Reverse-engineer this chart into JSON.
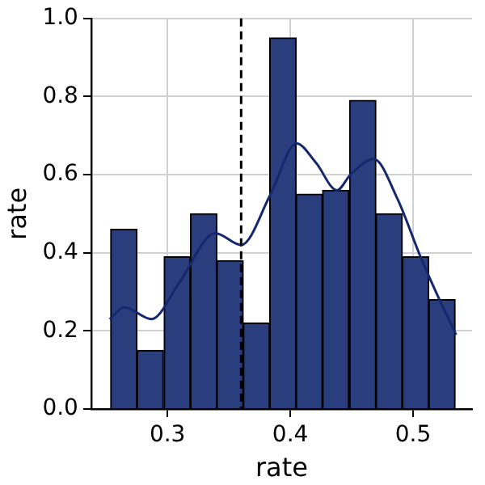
{
  "chart_data": {
    "type": "histogram",
    "xlabel": "rate",
    "ylabel": "rate",
    "bins": [
      0.254,
      0.275,
      0.297,
      0.319,
      0.34,
      0.362,
      0.383,
      0.405,
      0.426,
      0.448,
      0.47,
      0.491,
      0.513,
      0.534
    ],
    "values": [
      0.46,
      0.15,
      0.39,
      0.5,
      0.38,
      0.22,
      0.95,
      0.55,
      0.56,
      0.79,
      0.5,
      0.39,
      0.28
    ],
    "color": "#2a3d7c",
    "series": [
      {
        "type": "line",
        "color": "#15286e",
        "x": [
          0.253,
          0.265,
          0.287,
          0.309,
          0.339,
          0.36,
          0.384,
          0.405,
          0.421,
          0.438,
          0.449,
          0.468,
          0.487,
          0.506,
          0.52,
          0.535
        ],
        "values": [
          0.23,
          0.26,
          0.23,
          0.32,
          0.45,
          0.42,
          0.55,
          0.68,
          0.63,
          0.56,
          0.6,
          0.64,
          0.54,
          0.39,
          0.29,
          0.19
        ]
      }
    ],
    "ref_lines": [
      {
        "axis": "x",
        "value": 0.36,
        "color": "#000000",
        "line_style": "dashed"
      }
    ],
    "xlim": [
      0.238,
      0.548
    ],
    "xticks": [
      0.3,
      0.4,
      0.5
    ],
    "ylim": [
      0,
      1
    ],
    "yticks": [
      {
        "value": 0,
        "label": "0.0"
      },
      {
        "value": 0.2,
        "label": "0.2"
      },
      {
        "value": 0.4,
        "label": "0.4"
      },
      {
        "value": 0.6,
        "label": "0.6"
      },
      {
        "value": 0.8,
        "label": "0.8"
      },
      {
        "value": 1,
        "label": "1.0"
      }
    ],
    "grid": true,
    "legend": false
  }
}
